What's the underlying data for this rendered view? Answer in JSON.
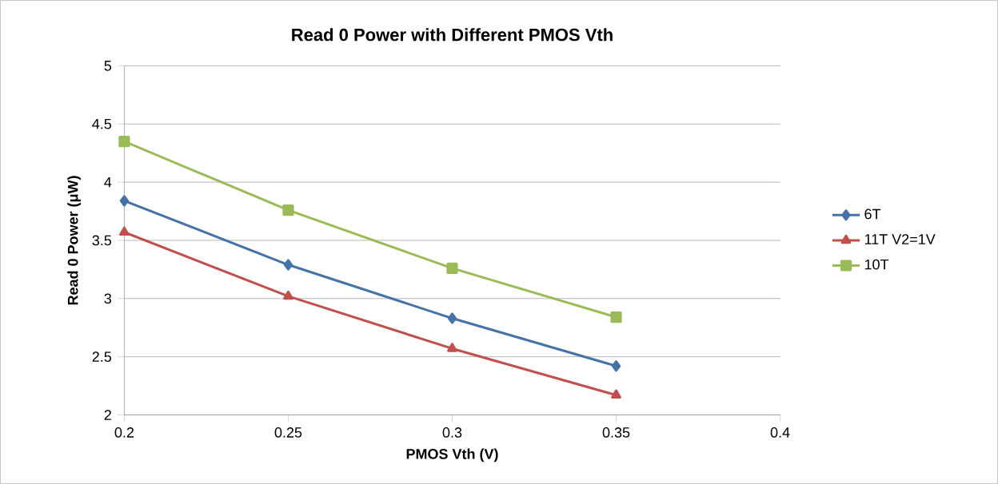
{
  "chart_data": {
    "type": "line",
    "title": "Read 0 Power with Different PMOS Vth",
    "xlabel": "PMOS Vth (V)",
    "ylabel": "Read 0 Power (μW)",
    "x": [
      0.2,
      0.25,
      0.3,
      0.35
    ],
    "series": [
      {
        "name": "6T",
        "color": "#4572a7",
        "marker": "diamond",
        "values": [
          3.84,
          3.29,
          2.83,
          2.42
        ]
      },
      {
        "name": "11T V2=1V",
        "color": "#c0504d",
        "marker": "triangle",
        "values": [
          3.57,
          3.02,
          2.57,
          2.17
        ]
      },
      {
        "name": "10T",
        "color": "#9bbb59",
        "marker": "square",
        "values": [
          4.35,
          3.76,
          3.26,
          2.84
        ]
      }
    ],
    "xlim": [
      0.2,
      0.4
    ],
    "xticks": [
      0.2,
      0.25,
      0.3,
      0.35,
      0.4
    ],
    "ylim": [
      2,
      5
    ],
    "yticks": [
      2,
      2.5,
      3,
      3.5,
      4,
      4.5,
      5
    ],
    "grid": "y",
    "legend": "right",
    "line_style": "solid"
  }
}
